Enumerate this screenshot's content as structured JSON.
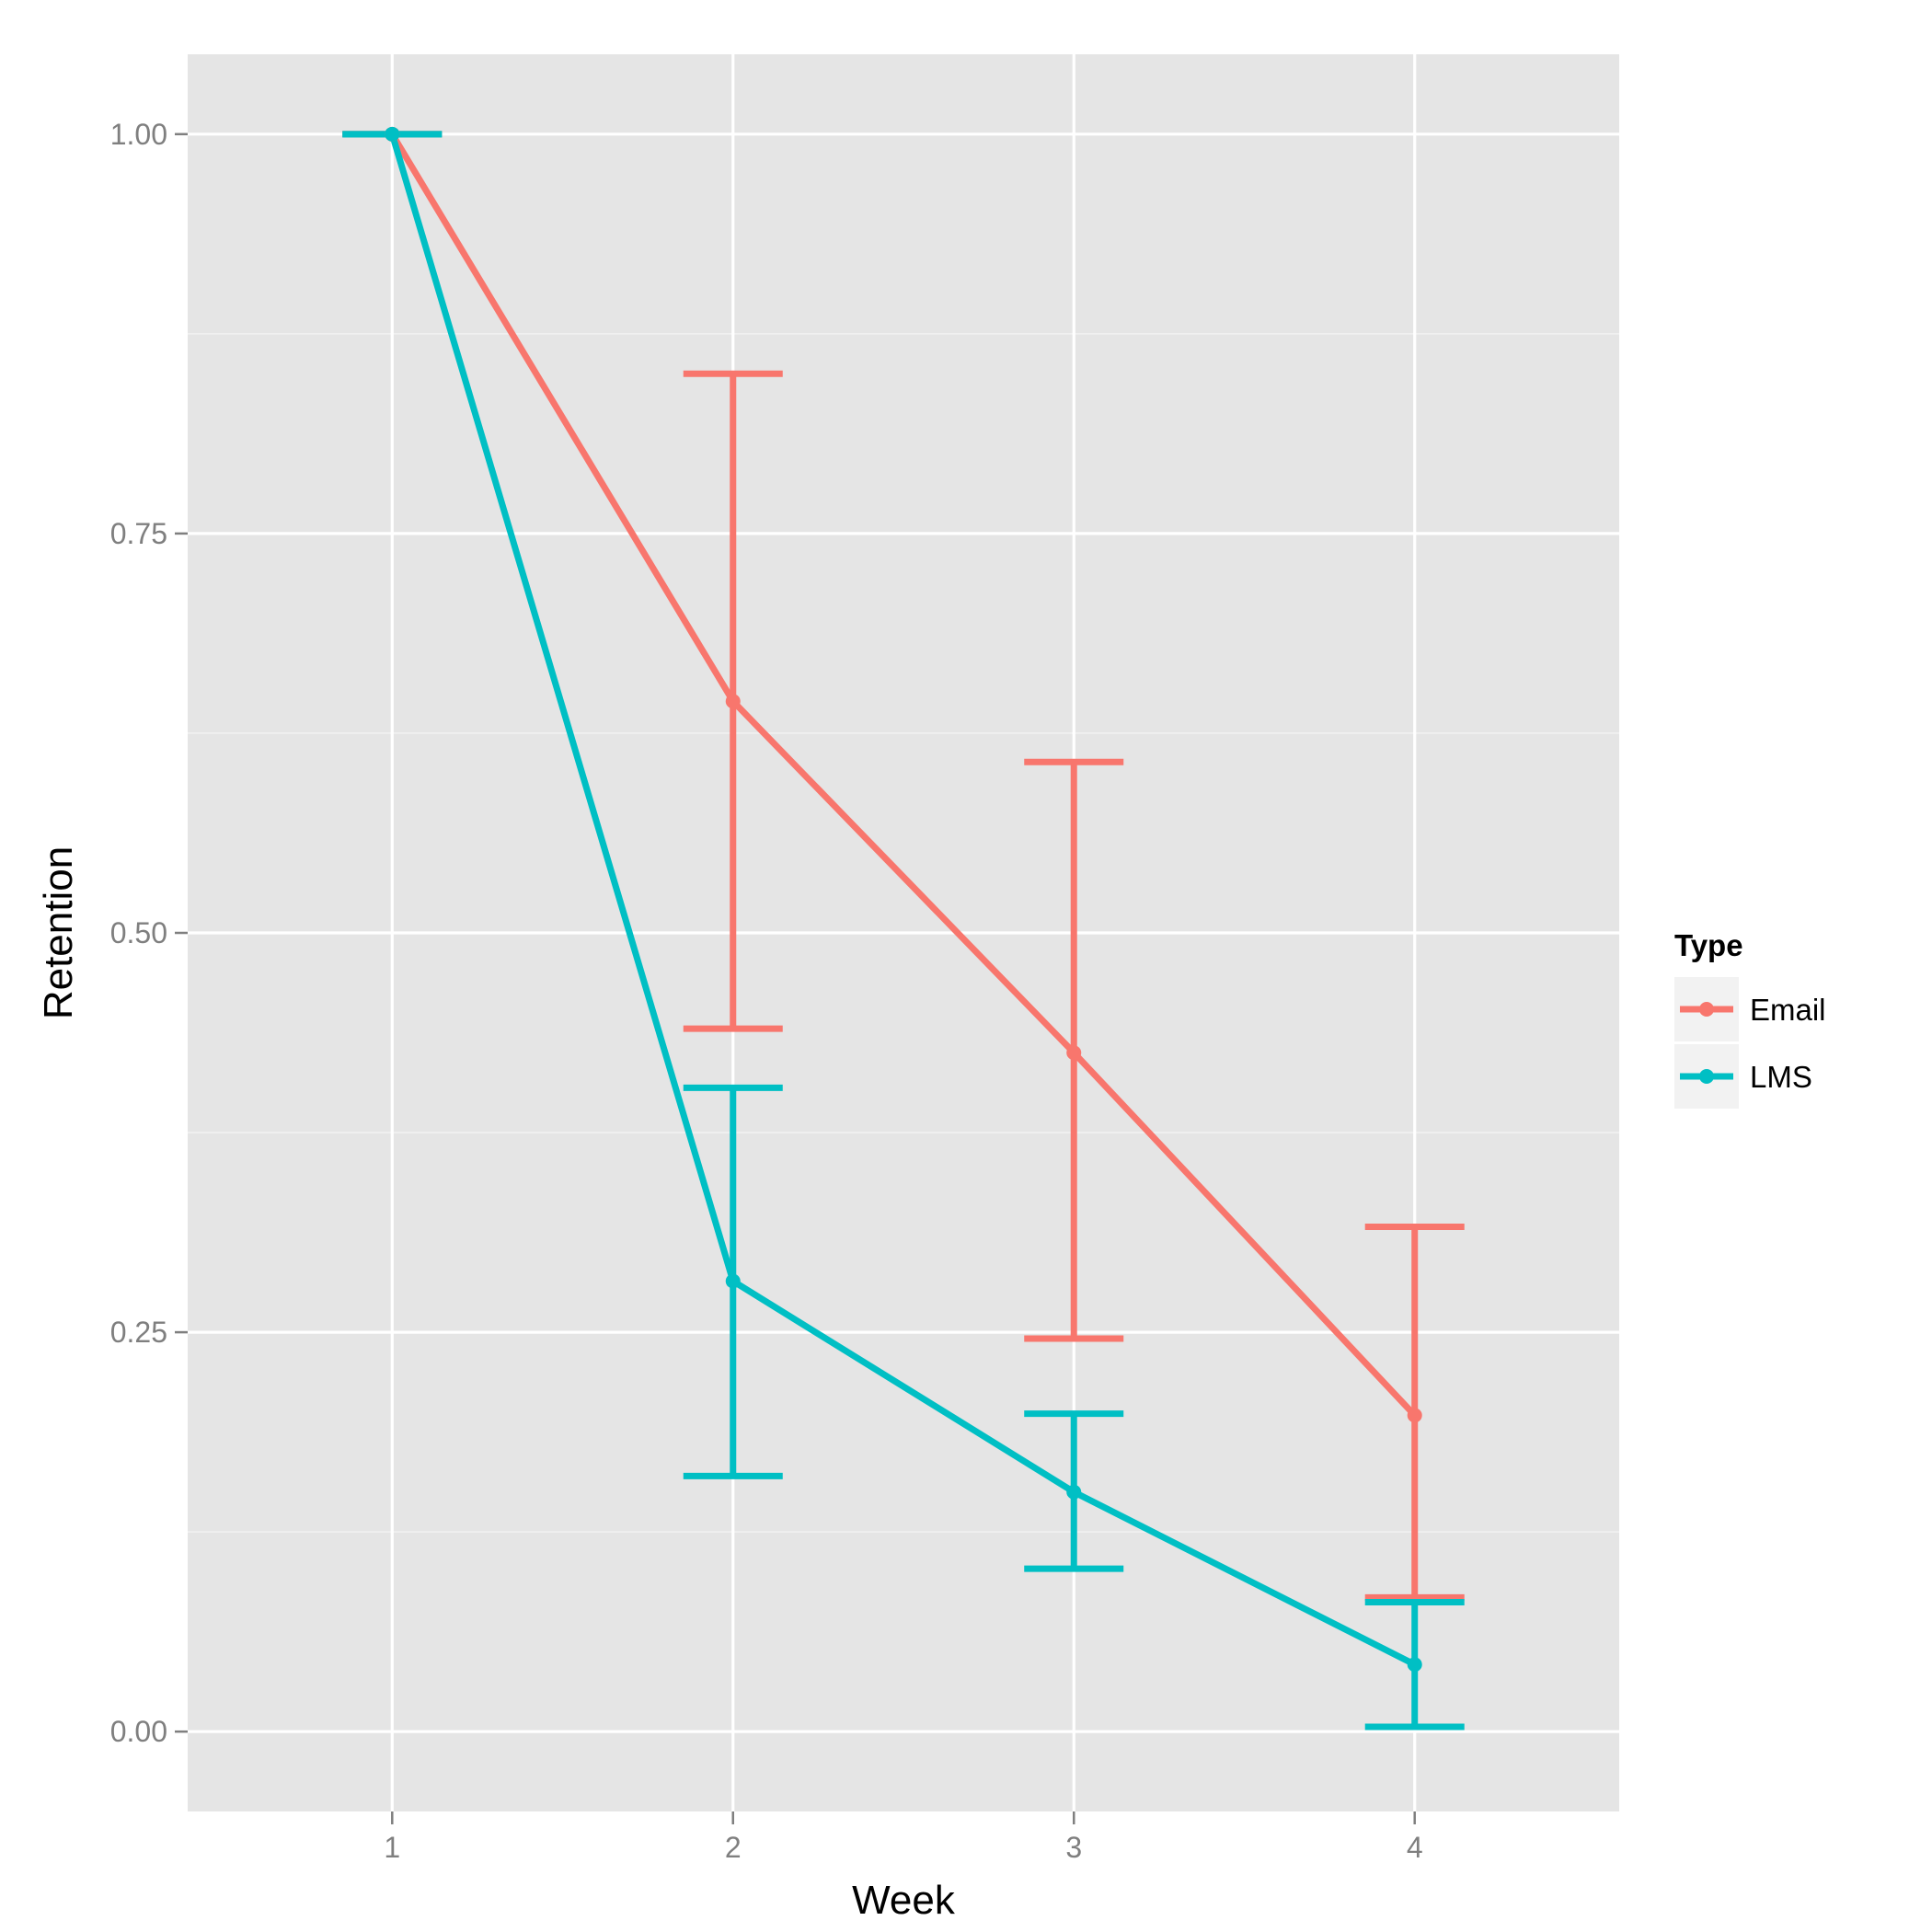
{
  "chart_data": {
    "type": "line",
    "xlabel": "Week",
    "ylabel": "Retention",
    "x": [
      1,
      2,
      3,
      4
    ],
    "x_ticks": [
      "1",
      "2",
      "3",
      "4"
    ],
    "xlim": [
      0.4,
      4.6
    ],
    "ylim": [
      -0.05,
      1.05
    ],
    "y_ticks": [
      "0.00",
      "0.25",
      "0.50",
      "0.75",
      "1.00"
    ],
    "grid": true,
    "legend": {
      "title": "Type",
      "position": "right"
    },
    "series": [
      {
        "name": "Email",
        "color": "#f8766d",
        "values": [
          1.0,
          0.645,
          0.425,
          0.198
        ],
        "error_lower": [
          1.0,
          0.44,
          0.246,
          0.084
        ],
        "error_upper": [
          1.0,
          0.85,
          0.607,
          0.316
        ]
      },
      {
        "name": "LMS",
        "color": "#00bfc4",
        "values": [
          1.0,
          0.282,
          0.15,
          0.042
        ],
        "error_lower": [
          1.0,
          0.16,
          0.102,
          0.003
        ],
        "error_upper": [
          1.0,
          0.403,
          0.199,
          0.081
        ]
      }
    ]
  }
}
